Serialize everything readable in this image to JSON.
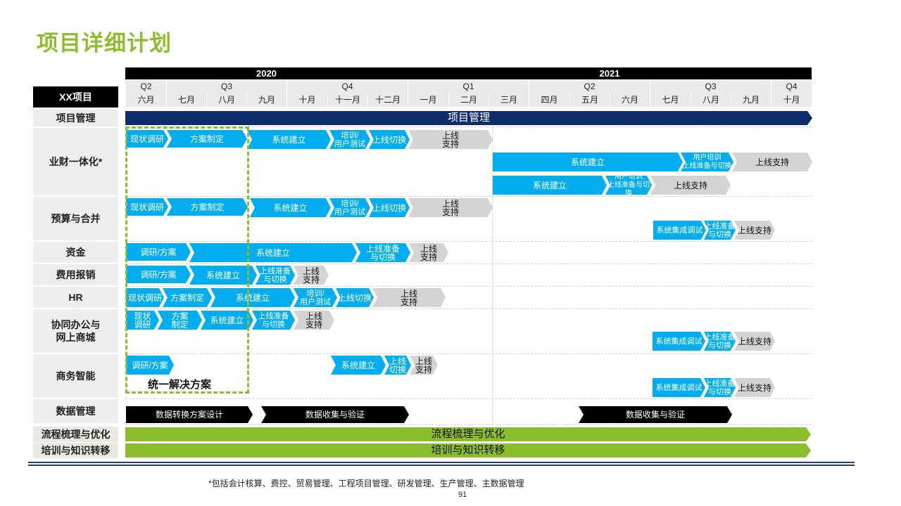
{
  "title": "项目详细计划",
  "years": [
    "2020",
    "2021"
  ],
  "quarters": [
    "Q2",
    "Q3",
    "Q4",
    "Q1",
    "Q2",
    "Q3",
    "Q4"
  ],
  "months": [
    "六月",
    "七月",
    "八月",
    "九月",
    "十月",
    "十一月",
    "十二月",
    "一月",
    "二月",
    "三月",
    "四月",
    "五月",
    "六月",
    "七月",
    "八月",
    "九月",
    "十月"
  ],
  "header_label": "XX项目",
  "rows": {
    "pm": "项目管理",
    "yc": "业财一体化*",
    "ys": "预算与合并",
    "zj": "资金",
    "fy": "费用报销",
    "hr": "HR",
    "xt": "协同办公与\n网上商城",
    "sw": "商务智能",
    "sj": "数据管理",
    "lc": "流程梳理与优化",
    "px": "培训与知识转移"
  },
  "unified_label": "统一解决方案",
  "tasks": {
    "pm_bar": "项目管理",
    "yc_1": "现状调研",
    "yc_2": "方案制定",
    "yc_3": "系统建立",
    "yc_4": "培训/\n用户测试",
    "yc_5": "上线切换",
    "yc_6": "上线\n支持",
    "yc_7": "系统建立",
    "yc_8": "用户培训\n上线准备与切换",
    "yc_9": "上线支持",
    "yc_10": "系统建立",
    "yc_11": "用户培训\n上线准备与切换",
    "yc_12": "上线支持",
    "ys_1": "现状调研",
    "ys_2": "方案制定",
    "ys_3": "系统建立",
    "ys_4": "培训/\n用户测试",
    "ys_5": "上线切换",
    "ys_6": "上线\n支持",
    "ys_7": "系统集成调试",
    "ys_8": "上线准备\n与切换",
    "ys_9": "上线支持",
    "zj_1": "调研/方案",
    "zj_2": "系统建立",
    "zj_3": "上线准备\n与切换",
    "zj_4": "上线\n支持",
    "fy_1": "调研/方案",
    "fy_2": "系统建立",
    "fy_3": "上线准备\n与切换",
    "fy_4": "上线\n支持",
    "hr_1": "现状调研",
    "hr_2": "方案制定",
    "hr_3": "系统建立",
    "hr_4": "培训/\n用户测试",
    "hr_5": "上线切换",
    "hr_6": "上线\n支持",
    "xt_1": "现状\n调研",
    "xt_2": "方案\n制定",
    "xt_3": "系统建立",
    "xt_4": "上线准备\n与切换",
    "xt_5": "上线\n支持",
    "xt_6": "系统集成调试",
    "xt_7": "上线准备\n与切换",
    "xt_8": "上线支持",
    "sw_1": "调研/方案",
    "sw_2": "系统建立",
    "sw_3": "上线\n切换",
    "sw_4": "上线\n支持",
    "sw_5": "系统集成调试",
    "sw_6": "上线准备\n与切换",
    "sw_7": "上线支持",
    "sj_1": "数据转换方案设计",
    "sj_2": "数据收集与验证",
    "sj_3": "数据收集与验证",
    "lc_bar": "流程梳理与优化",
    "px_bar": "培训与知识转移"
  },
  "footnote": "*包括会计核算、费控、贸易管理、工程项目管理、研发管理、生产管理、主数据管理",
  "page_number": "91",
  "colors": {
    "title_green": "#8cbd2c",
    "blue": "#00aeef",
    "navy": "#0d2d6c",
    "gray": "#d4d4d4",
    "black": "#000000"
  }
}
